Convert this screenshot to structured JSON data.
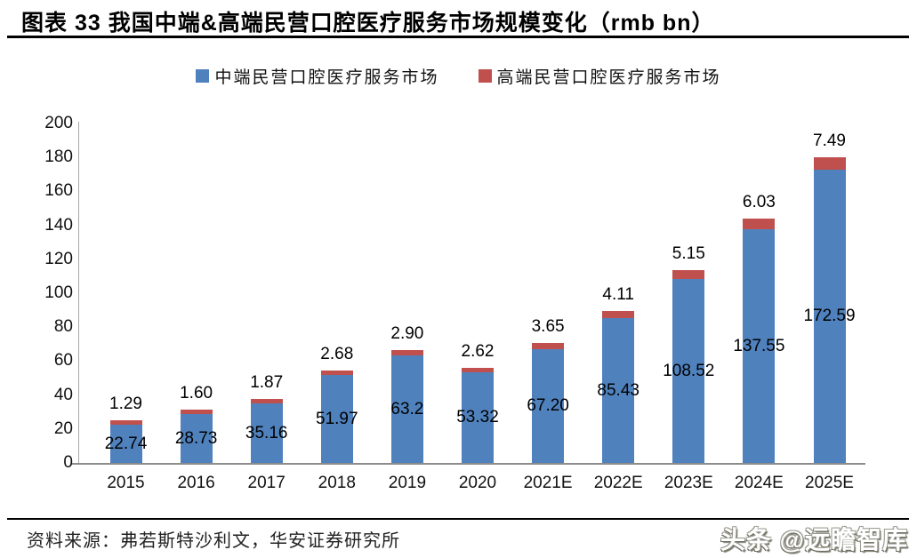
{
  "header": {
    "title": "图表 33 我国中端&高端民营口腔医疗服务市场规模变化（rmb bn）"
  },
  "chart_data": {
    "type": "bar",
    "stacked": true,
    "grid": false,
    "legend_position": "top",
    "title": "图表 33 我国中端&高端民营口腔医疗服务市场规模变化（rmb bn）",
    "xlabel": "",
    "ylabel": "",
    "ylim": [
      0,
      200
    ],
    "yticks": [
      0,
      20,
      40,
      60,
      80,
      100,
      120,
      140,
      160,
      180,
      200
    ],
    "categories": [
      "2015",
      "2016",
      "2017",
      "2018",
      "2019",
      "2020",
      "2021E",
      "2022E",
      "2023E",
      "2024E",
      "2025E"
    ],
    "series": [
      {
        "name": "中端民营口腔医疗服务市场",
        "color": "#4F81BD",
        "values": [
          22.74,
          28.73,
          35.16,
          51.97,
          63.2,
          53.32,
          67.2,
          85.43,
          108.52,
          137.55,
          172.59
        ],
        "labels": [
          "22.74",
          "28.73",
          "35.16",
          "51.97",
          "63.2",
          "53.32",
          "67.20",
          "85.43",
          "108.52",
          "137.55",
          "172.59"
        ]
      },
      {
        "name": "高端民营口腔医疗服务市场",
        "color": "#C0504D",
        "values": [
          1.29,
          1.6,
          1.87,
          2.68,
          2.9,
          2.62,
          3.65,
          4.11,
          5.15,
          6.03,
          7.49
        ],
        "labels": [
          "1.29",
          "1.60",
          "1.87",
          "2.68",
          "2.90",
          "2.62",
          "3.65",
          "4.11",
          "5.15",
          "6.03",
          "7.49"
        ]
      }
    ]
  },
  "footer": {
    "source": "资料来源：弗若斯特沙利文，华安证券研究所",
    "watermark": "头条 @远瞻智库"
  }
}
